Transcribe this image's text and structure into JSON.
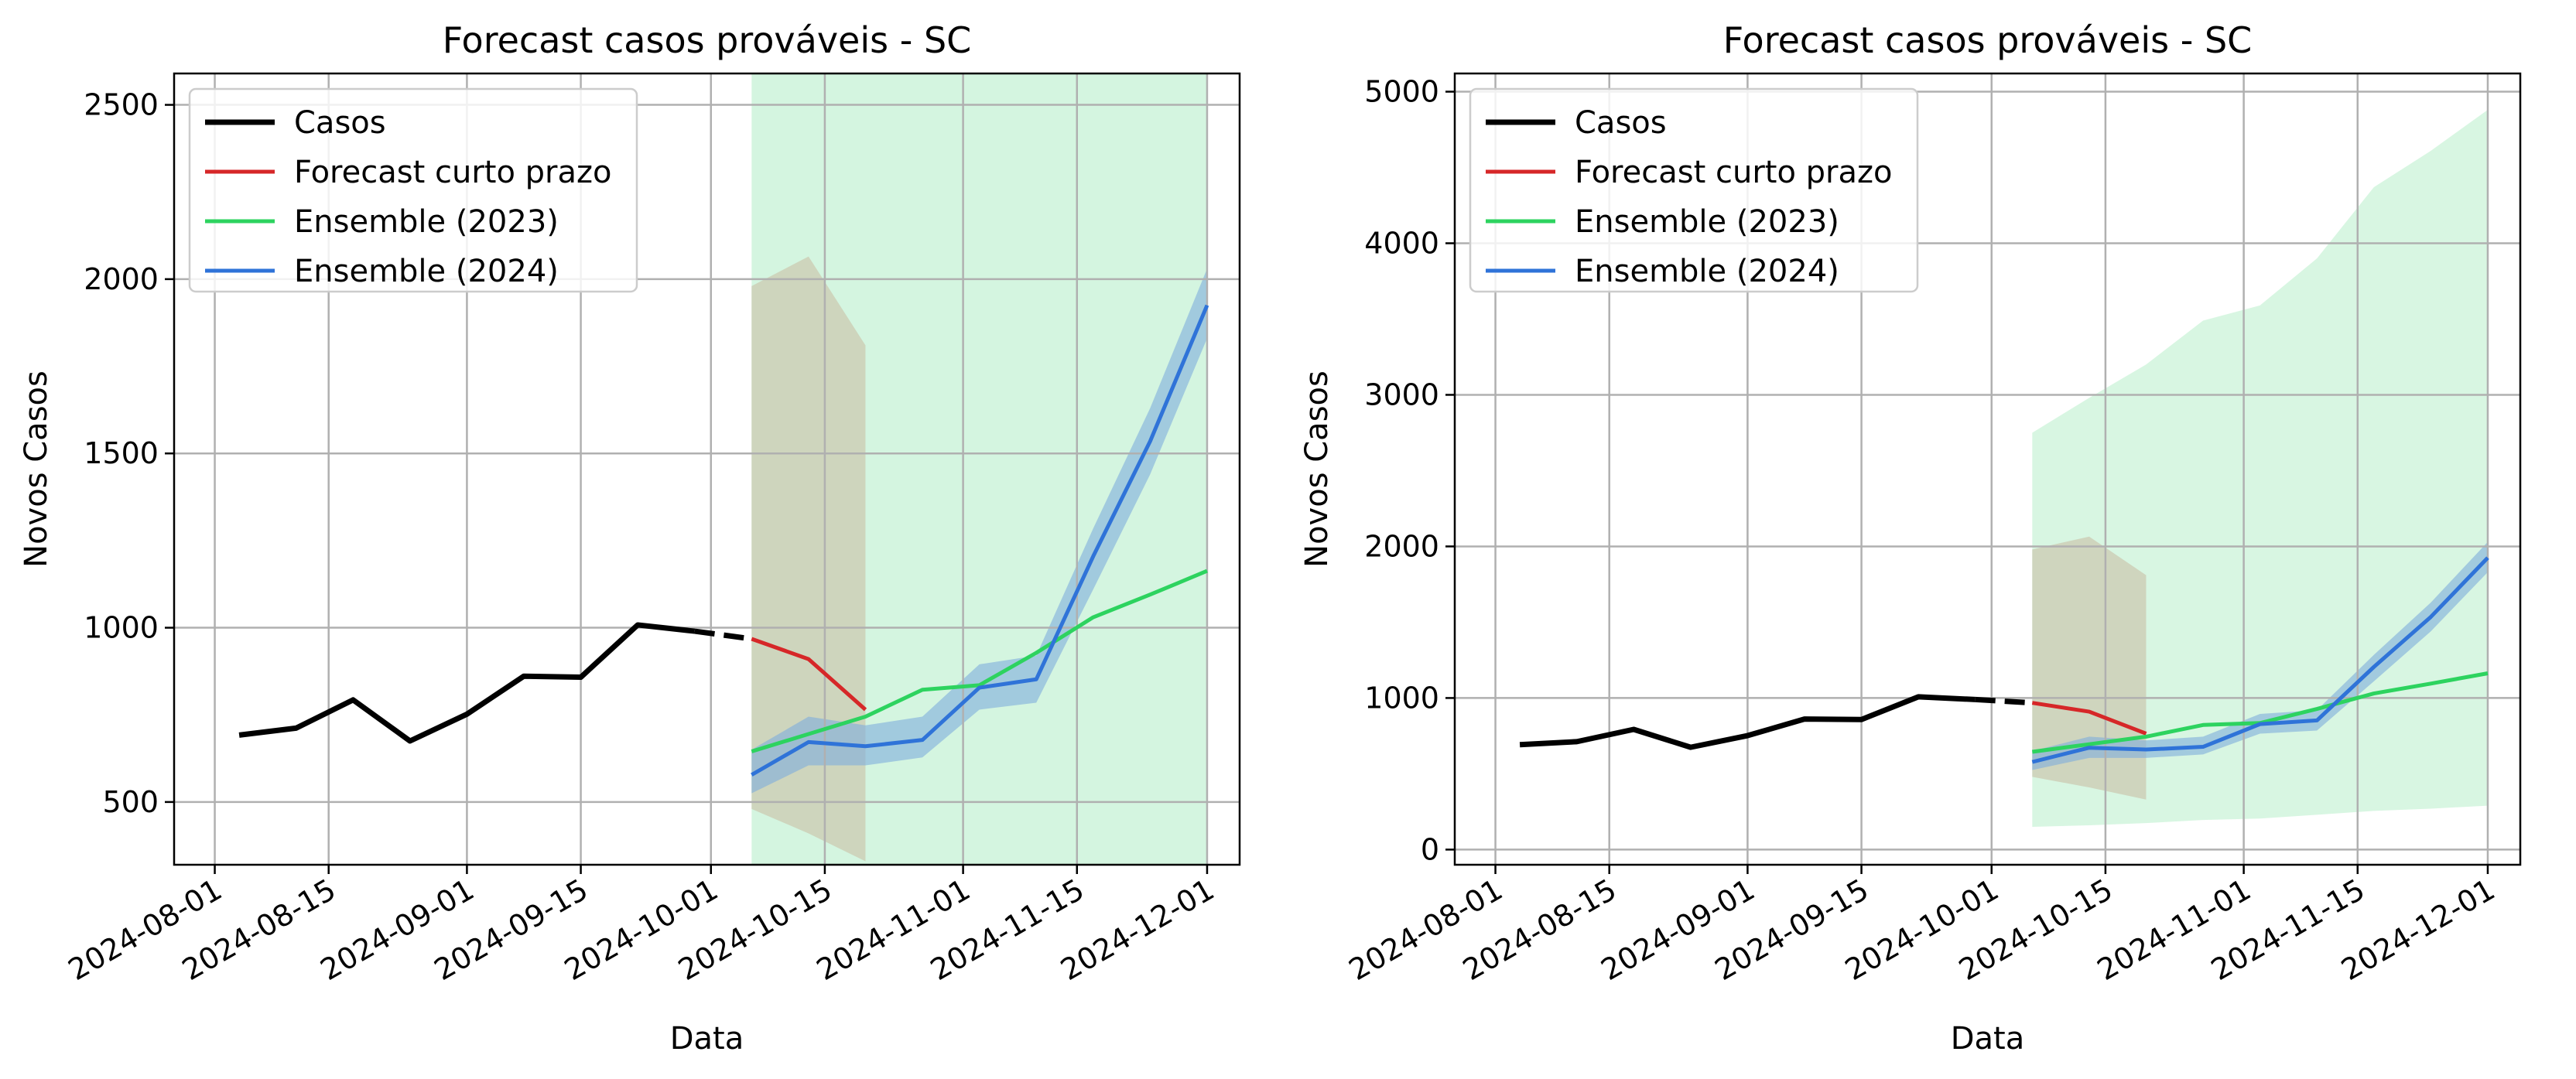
{
  "chart_data": [
    {
      "type": "line",
      "title": "Forecast casos prováveis - SC",
      "xlabel": "Data",
      "ylabel": "Novos Casos",
      "xlim": [
        "2024-07-27",
        "2024-12-05"
      ],
      "ylim": [
        320,
        2590
      ],
      "yticks": [
        500,
        1000,
        1500,
        2000,
        2500
      ],
      "xticks": [
        "2024-08-01",
        "2024-08-15",
        "2024-09-01",
        "2024-09-15",
        "2024-10-01",
        "2024-10-15",
        "2024-11-01",
        "2024-11-15",
        "2024-12-01"
      ],
      "grid": true,
      "legend_position": "top-left",
      "highlight_band": {
        "x": [
          "2024-10-06",
          "2024-12-01"
        ],
        "color": "#d4f5e0"
      },
      "series": [
        {
          "name": "Casos",
          "color": "#000000",
          "x": [
            "2024-08-04",
            "2024-08-11",
            "2024-08-18",
            "2024-08-25",
            "2024-09-01",
            "2024-09-08",
            "2024-09-15",
            "2024-09-22",
            "2024-09-29"
          ],
          "y": [
            692,
            712,
            793,
            675,
            752,
            861,
            858,
            1008,
            990
          ],
          "dashed_continuation": {
            "x": [
              "2024-09-29",
              "2024-10-06"
            ],
            "y": [
              990,
              968
            ]
          }
        },
        {
          "name": "Forecast curto prazo",
          "color": "#d62728",
          "x": [
            "2024-10-06",
            "2024-10-13",
            "2024-10-20"
          ],
          "y": [
            968,
            910,
            765
          ],
          "band": {
            "lower": [
              480,
              410,
              330
            ],
            "upper": [
              1980,
              2065,
              1810
            ],
            "color": "#c8b9a0"
          }
        },
        {
          "name": "Ensemble (2023)",
          "color": "#2dd35f",
          "x": [
            "2024-10-06",
            "2024-10-13",
            "2024-10-20",
            "2024-10-27",
            "2024-11-03",
            "2024-11-10",
            "2024-11-17",
            "2024-11-24",
            "2024-12-01"
          ],
          "y": [
            645,
            695,
            745,
            822,
            835,
            928,
            1030,
            1095,
            1163
          ]
        },
        {
          "name": "Ensemble (2024)",
          "color": "#2f73d8",
          "x": [
            "2024-10-06",
            "2024-10-13",
            "2024-10-20",
            "2024-10-27",
            "2024-11-03",
            "2024-11-10",
            "2024-11-17",
            "2024-11-24",
            "2024-12-01"
          ],
          "y": [
            578,
            672,
            660,
            678,
            828,
            852,
            1205,
            1535,
            1925
          ],
          "band": {
            "lower": [
              525,
              605,
              605,
              628,
              765,
              785,
              1110,
              1440,
              1830
            ],
            "upper": [
              650,
              745,
              720,
              745,
              895,
              920,
              1285,
              1630,
              2030
            ],
            "color": "#7faedc"
          }
        }
      ]
    },
    {
      "type": "line",
      "title": "Forecast casos prováveis - SC",
      "xlabel": "Data",
      "ylabel": "Novos Casos",
      "xlim": [
        "2024-07-27",
        "2024-12-05"
      ],
      "ylim": [
        -100,
        5120
      ],
      "yticks": [
        0,
        1000,
        2000,
        3000,
        4000,
        5000
      ],
      "xticks": [
        "2024-08-01",
        "2024-08-15",
        "2024-09-01",
        "2024-09-15",
        "2024-10-01",
        "2024-10-15",
        "2024-11-01",
        "2024-11-15",
        "2024-12-01"
      ],
      "grid": true,
      "legend_position": "top-left",
      "series": [
        {
          "name": "Casos",
          "color": "#000000",
          "x": [
            "2024-08-04",
            "2024-08-11",
            "2024-08-18",
            "2024-08-25",
            "2024-09-01",
            "2024-09-08",
            "2024-09-15",
            "2024-09-22",
            "2024-09-29"
          ],
          "y": [
            692,
            712,
            793,
            675,
            752,
            861,
            858,
            1008,
            990
          ],
          "dashed_continuation": {
            "x": [
              "2024-09-29",
              "2024-10-06"
            ],
            "y": [
              990,
              968
            ]
          }
        },
        {
          "name": "Forecast curto prazo",
          "color": "#d62728",
          "x": [
            "2024-10-06",
            "2024-10-13",
            "2024-10-20"
          ],
          "y": [
            968,
            910,
            765
          ],
          "band": {
            "lower": [
              480,
              410,
              330
            ],
            "upper": [
              1980,
              2065,
              1810
            ],
            "color": "#c8b9a0"
          }
        },
        {
          "name": "Ensemble (2023)",
          "color": "#2dd35f",
          "x": [
            "2024-10-06",
            "2024-10-13",
            "2024-10-20",
            "2024-10-27",
            "2024-11-03",
            "2024-11-10",
            "2024-11-17",
            "2024-11-24",
            "2024-12-01"
          ],
          "y": [
            645,
            695,
            745,
            822,
            835,
            928,
            1030,
            1095,
            1163
          ],
          "band": {
            "lower": [
              150,
              160,
              175,
              195,
              205,
              230,
              255,
              270,
              290
            ],
            "upper": [
              2750,
              2980,
              3200,
              3490,
              3590,
              3900,
              4370,
              4610,
              4880
            ],
            "color": "#a8ecbf"
          }
        },
        {
          "name": "Ensemble (2024)",
          "color": "#2f73d8",
          "x": [
            "2024-10-06",
            "2024-10-13",
            "2024-10-20",
            "2024-10-27",
            "2024-11-03",
            "2024-11-10",
            "2024-11-17",
            "2024-11-24",
            "2024-12-01"
          ],
          "y": [
            578,
            672,
            660,
            678,
            828,
            852,
            1205,
            1535,
            1925
          ],
          "band": {
            "lower": [
              525,
              605,
              605,
              628,
              765,
              785,
              1110,
              1440,
              1830
            ],
            "upper": [
              650,
              745,
              720,
              745,
              895,
              920,
              1285,
              1630,
              2030
            ],
            "color": "#7faedc"
          }
        }
      ]
    }
  ]
}
